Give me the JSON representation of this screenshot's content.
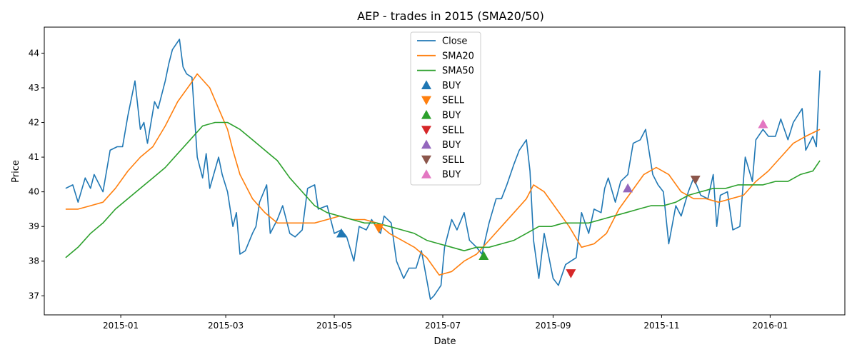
{
  "chart_data": {
    "type": "line",
    "title": "AEP - trades in 2015 (SMA20/50)",
    "xlabel": "Date",
    "ylabel": "Price",
    "x_range": [
      "2014-11-19",
      "2016-02-12"
    ],
    "y_range": [
      36.45,
      44.75
    ],
    "x_ticks": [
      "2015-01-01",
      "2015-03-01",
      "2015-05-01",
      "2015-07-01",
      "2015-09-01",
      "2015-11-01",
      "2016-01-01"
    ],
    "x_tick_labels": [
      "2015-01",
      "2015-03",
      "2015-05",
      "2015-07",
      "2015-09",
      "2015-11",
      "2016-01"
    ],
    "y_ticks": [
      37,
      38,
      39,
      40,
      41,
      42,
      43,
      44
    ],
    "grid": false,
    "legend_position": "top-center",
    "series": [
      {
        "name": "Close",
        "color": "#1f77b4",
        "points": [
          [
            "2014-12-01",
            40.1
          ],
          [
            "2014-12-05",
            40.2
          ],
          [
            "2014-12-08",
            39.7
          ],
          [
            "2014-12-12",
            40.4
          ],
          [
            "2014-12-15",
            40.1
          ],
          [
            "2014-12-17",
            40.5
          ],
          [
            "2014-12-22",
            40.0
          ],
          [
            "2014-12-26",
            41.2
          ],
          [
            "2014-12-30",
            41.3
          ],
          [
            "2015-01-02",
            41.3
          ],
          [
            "2015-01-05",
            42.2
          ],
          [
            "2015-01-09",
            43.2
          ],
          [
            "2015-01-12",
            41.8
          ],
          [
            "2015-01-14",
            42.0
          ],
          [
            "2015-01-16",
            41.4
          ],
          [
            "2015-01-20",
            42.6
          ],
          [
            "2015-01-22",
            42.4
          ],
          [
            "2015-01-26",
            43.2
          ],
          [
            "2015-01-28",
            43.7
          ],
          [
            "2015-01-30",
            44.1
          ],
          [
            "2015-02-03",
            44.4
          ],
          [
            "2015-02-05",
            43.6
          ],
          [
            "2015-02-07",
            43.4
          ],
          [
            "2015-02-10",
            43.3
          ],
          [
            "2015-02-13",
            41.0
          ],
          [
            "2015-02-16",
            40.4
          ],
          [
            "2015-02-18",
            41.1
          ],
          [
            "2015-02-20",
            40.1
          ],
          [
            "2015-02-25",
            41.0
          ],
          [
            "2015-02-27",
            40.5
          ],
          [
            "2015-03-02",
            40.0
          ],
          [
            "2015-03-05",
            39.0
          ],
          [
            "2015-03-07",
            39.4
          ],
          [
            "2015-03-09",
            38.2
          ],
          [
            "2015-03-12",
            38.3
          ],
          [
            "2015-03-16",
            38.8
          ],
          [
            "2015-03-18",
            39.0
          ],
          [
            "2015-03-20",
            39.7
          ],
          [
            "2015-03-24",
            40.2
          ],
          [
            "2015-03-26",
            38.8
          ],
          [
            "2015-03-30",
            39.2
          ],
          [
            "2015-04-02",
            39.6
          ],
          [
            "2015-04-06",
            38.8
          ],
          [
            "2015-04-09",
            38.7
          ],
          [
            "2015-04-13",
            38.9
          ],
          [
            "2015-04-16",
            40.1
          ],
          [
            "2015-04-20",
            40.2
          ],
          [
            "2015-04-22",
            39.5
          ],
          [
            "2015-04-27",
            39.6
          ],
          [
            "2015-05-01",
            38.8
          ],
          [
            "2015-05-05",
            38.9
          ],
          [
            "2015-05-08",
            38.7
          ],
          [
            "2015-05-12",
            38.0
          ],
          [
            "2015-05-15",
            39.0
          ],
          [
            "2015-05-19",
            38.9
          ],
          [
            "2015-05-22",
            39.2
          ],
          [
            "2015-05-27",
            38.8
          ],
          [
            "2015-05-29",
            39.3
          ],
          [
            "2015-06-02",
            39.1
          ],
          [
            "2015-06-05",
            38.0
          ],
          [
            "2015-06-09",
            37.5
          ],
          [
            "2015-06-12",
            37.8
          ],
          [
            "2015-06-16",
            37.8
          ],
          [
            "2015-06-19",
            38.3
          ],
          [
            "2015-06-24",
            36.9
          ],
          [
            "2015-06-26",
            37.0
          ],
          [
            "2015-06-30",
            37.3
          ],
          [
            "2015-07-02",
            38.4
          ],
          [
            "2015-07-06",
            39.2
          ],
          [
            "2015-07-09",
            38.9
          ],
          [
            "2015-07-13",
            39.4
          ],
          [
            "2015-07-16",
            38.6
          ],
          [
            "2015-07-20",
            38.4
          ],
          [
            "2015-07-23",
            38.2
          ],
          [
            "2015-07-27",
            39.1
          ],
          [
            "2015-07-31",
            39.8
          ],
          [
            "2015-08-03",
            39.8
          ],
          [
            "2015-08-06",
            40.2
          ],
          [
            "2015-08-10",
            40.8
          ],
          [
            "2015-08-13",
            41.2
          ],
          [
            "2015-08-17",
            41.5
          ],
          [
            "2015-08-19",
            40.6
          ],
          [
            "2015-08-21",
            38.6
          ],
          [
            "2015-08-24",
            37.5
          ],
          [
            "2015-08-27",
            38.8
          ],
          [
            "2015-09-01",
            37.5
          ],
          [
            "2015-09-04",
            37.3
          ],
          [
            "2015-09-08",
            37.9
          ],
          [
            "2015-09-11",
            38.0
          ],
          [
            "2015-09-14",
            38.1
          ],
          [
            "2015-09-17",
            39.4
          ],
          [
            "2015-09-21",
            38.8
          ],
          [
            "2015-09-24",
            39.5
          ],
          [
            "2015-09-28",
            39.4
          ],
          [
            "2015-09-30",
            40.1
          ],
          [
            "2015-10-02",
            40.4
          ],
          [
            "2015-10-06",
            39.7
          ],
          [
            "2015-10-09",
            40.3
          ],
          [
            "2015-10-13",
            40.5
          ],
          [
            "2015-10-16",
            41.4
          ],
          [
            "2015-10-20",
            41.5
          ],
          [
            "2015-10-23",
            41.8
          ],
          [
            "2015-10-27",
            40.5
          ],
          [
            "2015-10-30",
            40.2
          ],
          [
            "2015-11-02",
            40.0
          ],
          [
            "2015-11-05",
            38.5
          ],
          [
            "2015-11-09",
            39.6
          ],
          [
            "2015-11-12",
            39.3
          ],
          [
            "2015-11-16",
            40.0
          ],
          [
            "2015-11-19",
            40.4
          ],
          [
            "2015-11-23",
            39.9
          ],
          [
            "2015-11-27",
            39.8
          ],
          [
            "2015-11-30",
            40.5
          ],
          [
            "2015-12-02",
            39.0
          ],
          [
            "2015-12-04",
            39.9
          ],
          [
            "2015-12-08",
            40.0
          ],
          [
            "2015-12-11",
            38.9
          ],
          [
            "2015-12-15",
            39.0
          ],
          [
            "2015-12-18",
            41.0
          ],
          [
            "2015-12-22",
            40.3
          ],
          [
            "2015-12-24",
            41.5
          ],
          [
            "2015-12-28",
            41.8
          ],
          [
            "2015-12-31",
            41.6
          ],
          [
            "2016-01-04",
            41.6
          ],
          [
            "2016-01-07",
            42.1
          ],
          [
            "2016-01-11",
            41.5
          ],
          [
            "2016-01-14",
            42.0
          ],
          [
            "2016-01-19",
            42.4
          ],
          [
            "2016-01-21",
            41.2
          ],
          [
            "2016-01-25",
            41.6
          ],
          [
            "2016-01-27",
            41.3
          ],
          [
            "2016-01-29",
            43.5
          ]
        ]
      },
      {
        "name": "SMA20",
        "color": "#ff7f0e",
        "points": [
          [
            "2014-12-01",
            39.5
          ],
          [
            "2014-12-08",
            39.5
          ],
          [
            "2014-12-15",
            39.6
          ],
          [
            "2014-12-22",
            39.7
          ],
          [
            "2014-12-29",
            40.1
          ],
          [
            "2015-01-05",
            40.6
          ],
          [
            "2015-01-12",
            41.0
          ],
          [
            "2015-01-19",
            41.3
          ],
          [
            "2015-01-26",
            41.9
          ],
          [
            "2015-02-02",
            42.6
          ],
          [
            "2015-02-09",
            43.1
          ],
          [
            "2015-02-13",
            43.4
          ],
          [
            "2015-02-20",
            43.0
          ],
          [
            "2015-02-25",
            42.4
          ],
          [
            "2015-03-02",
            41.8
          ],
          [
            "2015-03-05",
            41.2
          ],
          [
            "2015-03-09",
            40.5
          ],
          [
            "2015-03-16",
            39.8
          ],
          [
            "2015-03-23",
            39.4
          ],
          [
            "2015-03-30",
            39.1
          ],
          [
            "2015-04-06",
            39.1
          ],
          [
            "2015-04-13",
            39.1
          ],
          [
            "2015-04-20",
            39.1
          ],
          [
            "2015-04-27",
            39.2
          ],
          [
            "2015-05-04",
            39.3
          ],
          [
            "2015-05-11",
            39.2
          ],
          [
            "2015-05-18",
            39.2
          ],
          [
            "2015-05-25",
            39.1
          ],
          [
            "2015-06-01",
            38.8
          ],
          [
            "2015-06-08",
            38.6
          ],
          [
            "2015-06-15",
            38.4
          ],
          [
            "2015-06-22",
            38.1
          ],
          [
            "2015-06-29",
            37.6
          ],
          [
            "2015-07-06",
            37.7
          ],
          [
            "2015-07-13",
            38.0
          ],
          [
            "2015-07-20",
            38.2
          ],
          [
            "2015-07-27",
            38.6
          ],
          [
            "2015-08-03",
            39.0
          ],
          [
            "2015-08-10",
            39.4
          ],
          [
            "2015-08-17",
            39.8
          ],
          [
            "2015-08-21",
            40.2
          ],
          [
            "2015-08-27",
            40.0
          ],
          [
            "2015-09-03",
            39.5
          ],
          [
            "2015-09-10",
            39.0
          ],
          [
            "2015-09-17",
            38.4
          ],
          [
            "2015-09-24",
            38.5
          ],
          [
            "2015-10-01",
            38.8
          ],
          [
            "2015-10-08",
            39.5
          ],
          [
            "2015-10-15",
            40.0
          ],
          [
            "2015-10-22",
            40.5
          ],
          [
            "2015-10-29",
            40.7
          ],
          [
            "2015-11-05",
            40.5
          ],
          [
            "2015-11-12",
            40.0
          ],
          [
            "2015-11-19",
            39.8
          ],
          [
            "2015-11-26",
            39.8
          ],
          [
            "2015-12-03",
            39.7
          ],
          [
            "2015-12-10",
            39.8
          ],
          [
            "2015-12-17",
            39.9
          ],
          [
            "2015-12-24",
            40.3
          ],
          [
            "2015-12-31",
            40.6
          ],
          [
            "2016-01-07",
            41.0
          ],
          [
            "2016-01-14",
            41.4
          ],
          [
            "2016-01-21",
            41.6
          ],
          [
            "2016-01-29",
            41.8
          ]
        ]
      },
      {
        "name": "SMA50",
        "color": "#2ca02c",
        "points": [
          [
            "2014-12-01",
            38.1
          ],
          [
            "2014-12-08",
            38.4
          ],
          [
            "2014-12-15",
            38.8
          ],
          [
            "2014-12-22",
            39.1
          ],
          [
            "2014-12-29",
            39.5
          ],
          [
            "2015-01-05",
            39.8
          ],
          [
            "2015-01-12",
            40.1
          ],
          [
            "2015-01-19",
            40.4
          ],
          [
            "2015-01-26",
            40.7
          ],
          [
            "2015-02-02",
            41.1
          ],
          [
            "2015-02-09",
            41.5
          ],
          [
            "2015-02-16",
            41.9
          ],
          [
            "2015-02-23",
            42.0
          ],
          [
            "2015-03-02",
            42.0
          ],
          [
            "2015-03-09",
            41.8
          ],
          [
            "2015-03-16",
            41.5
          ],
          [
            "2015-03-23",
            41.2
          ],
          [
            "2015-03-30",
            40.9
          ],
          [
            "2015-04-06",
            40.4
          ],
          [
            "2015-04-13",
            40.0
          ],
          [
            "2015-04-20",
            39.6
          ],
          [
            "2015-04-27",
            39.4
          ],
          [
            "2015-05-04",
            39.3
          ],
          [
            "2015-05-11",
            39.2
          ],
          [
            "2015-05-18",
            39.1
          ],
          [
            "2015-05-25",
            39.1
          ],
          [
            "2015-06-01",
            39.0
          ],
          [
            "2015-06-08",
            38.9
          ],
          [
            "2015-06-15",
            38.8
          ],
          [
            "2015-06-22",
            38.6
          ],
          [
            "2015-06-29",
            38.5
          ],
          [
            "2015-07-06",
            38.4
          ],
          [
            "2015-07-13",
            38.3
          ],
          [
            "2015-07-20",
            38.4
          ],
          [
            "2015-07-27",
            38.4
          ],
          [
            "2015-08-03",
            38.5
          ],
          [
            "2015-08-10",
            38.6
          ],
          [
            "2015-08-17",
            38.8
          ],
          [
            "2015-08-24",
            39.0
          ],
          [
            "2015-08-31",
            39.0
          ],
          [
            "2015-09-07",
            39.1
          ],
          [
            "2015-09-14",
            39.1
          ],
          [
            "2015-09-21",
            39.1
          ],
          [
            "2015-09-28",
            39.2
          ],
          [
            "2015-10-05",
            39.3
          ],
          [
            "2015-10-12",
            39.4
          ],
          [
            "2015-10-19",
            39.5
          ],
          [
            "2015-10-26",
            39.6
          ],
          [
            "2015-11-02",
            39.6
          ],
          [
            "2015-11-09",
            39.7
          ],
          [
            "2015-11-16",
            39.9
          ],
          [
            "2015-11-23",
            40.0
          ],
          [
            "2015-11-30",
            40.1
          ],
          [
            "2015-12-07",
            40.1
          ],
          [
            "2015-12-14",
            40.2
          ],
          [
            "2015-12-21",
            40.2
          ],
          [
            "2015-12-28",
            40.2
          ],
          [
            "2016-01-04",
            40.3
          ],
          [
            "2016-01-11",
            40.3
          ],
          [
            "2016-01-18",
            40.5
          ],
          [
            "2016-01-25",
            40.6
          ],
          [
            "2016-01-29",
            40.9
          ]
        ]
      }
    ],
    "markers": [
      {
        "label": "BUY",
        "shape": "triangle-up",
        "color": "#1f77b4",
        "date": "2015-05-05",
        "price": 38.8
      },
      {
        "label": "SELL",
        "shape": "triangle-down",
        "color": "#ff7f0e",
        "date": "2015-05-26",
        "price": 38.95
      },
      {
        "label": "BUY",
        "shape": "triangle-up",
        "color": "#2ca02c",
        "date": "2015-07-24",
        "price": 38.15
      },
      {
        "label": "SELL",
        "shape": "triangle-down",
        "color": "#d62728",
        "date": "2015-09-11",
        "price": 37.65
      },
      {
        "label": "BUY",
        "shape": "triangle-up",
        "color": "#9467bd",
        "date": "2015-10-13",
        "price": 40.1
      },
      {
        "label": "SELL",
        "shape": "triangle-down",
        "color": "#8c564b",
        "date": "2015-11-20",
        "price": 40.35
      },
      {
        "label": "BUY",
        "shape": "triangle-up",
        "color": "#e377c2",
        "date": "2015-12-28",
        "price": 41.95
      }
    ]
  }
}
